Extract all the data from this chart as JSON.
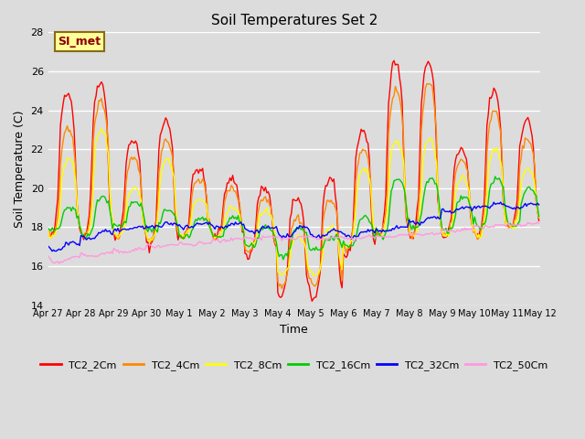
{
  "title": "Soil Temperatures Set 2",
  "xlabel": "Time",
  "ylabel": "Soil Temperature (C)",
  "ylim": [
    14,
    28
  ],
  "yticks": [
    14,
    16,
    18,
    20,
    22,
    24,
    26,
    28
  ],
  "plot_bg_color": "#dcdcdc",
  "fig_bg_color": "#dcdcdc",
  "annotation_text": "SI_met",
  "annotation_bg": "#ffff99",
  "annotation_border": "#8b6914",
  "annotation_text_color": "#8b0000",
  "legend_colors": [
    "#ff0000",
    "#ff8800",
    "#ffff00",
    "#00cc00",
    "#0000ff",
    "#ff99dd"
  ],
  "legend_labels": [
    "TC2_2Cm",
    "TC2_4Cm",
    "TC2_8Cm",
    "TC2_16Cm",
    "TC2_32Cm",
    "TC2_50Cm"
  ],
  "xtick_labels": [
    "Apr 27",
    "Apr 28",
    "Apr 29",
    "Apr 30",
    "May 1",
    "May 2",
    "May 3",
    "May 4",
    "May 5",
    "May 6",
    "May 7",
    "May 8",
    "May 9",
    "May 10",
    "May 11",
    "May 12"
  ],
  "line_width": 1.0
}
